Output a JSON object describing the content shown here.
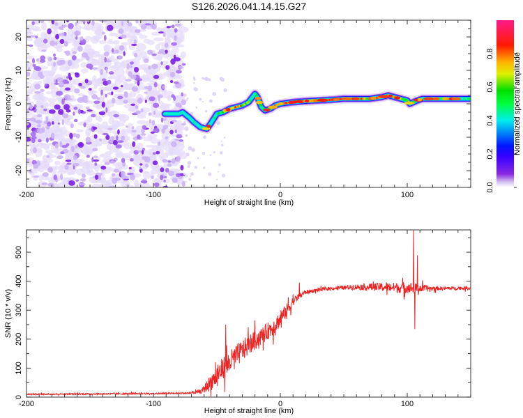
{
  "title": "S126.2026.041.14.15.G27",
  "chart_data": [
    {
      "type": "heatmap",
      "name": "spectrogram",
      "xlabel": "Height of straight line (km)",
      "ylabel": "Frequency (Hz)",
      "xlim": [
        -200,
        150
      ],
      "ylim": [
        -25,
        25
      ],
      "xticks": [
        -200,
        -100,
        0,
        100
      ],
      "yticks": [
        -20,
        -10,
        0,
        10,
        20
      ],
      "colorbar": {
        "label": "Normalized spectral amplitude",
        "range": [
          0.0,
          1.0
        ],
        "ticks": [
          "0.0",
          "0.2",
          "0.4",
          "0.6",
          "0.8"
        ],
        "colormap": "rainbow (white-violet-blue-cyan-green-yellow-red-magenta)"
      },
      "noise_region_x": [
        -200,
        -76
      ],
      "ridge": {
        "description": "Doppler ridge (center frequency vs height)",
        "x": [
          -91,
          -85,
          -80,
          -77,
          -72,
          -68,
          -63,
          -58,
          -55,
          -50,
          -45,
          -40,
          -35,
          -30,
          -25,
          -20,
          -18,
          -15,
          -12,
          -8,
          -4,
          0,
          10,
          20,
          30,
          40,
          50,
          60,
          70,
          80,
          85,
          90,
          95,
          100,
          102,
          105,
          108,
          112,
          120,
          130,
          140,
          150
        ],
        "y": [
          -3,
          -3,
          -3,
          -2.5,
          -4,
          -5.5,
          -7,
          -7.5,
          -6,
          -3,
          -2.5,
          -1.5,
          -1,
          -0.5,
          0.5,
          3,
          2,
          -1,
          -2,
          -1.5,
          -0.5,
          0,
          0.5,
          0.8,
          1,
          1.2,
          1.5,
          1.5,
          1.5,
          2,
          2.5,
          2,
          1.5,
          1,
          0,
          0.5,
          1,
          1.5,
          1.5,
          1.5,
          1.5,
          1.5
        ],
        "amplitude": [
          0.3,
          0.35,
          0.35,
          0.3,
          0.4,
          0.45,
          0.45,
          0.4,
          0.35,
          0.5,
          0.6,
          0.75,
          0.85,
          0.8,
          0.7,
          0.4,
          0.5,
          0.55,
          0.65,
          0.7,
          0.8,
          0.9,
          0.85,
          0.9,
          0.75,
          0.8,
          0.9,
          0.85,
          0.7,
          0.85,
          0.8,
          0.75,
          0.7,
          0.6,
          0.7,
          0.65,
          0.55,
          0.5,
          0.5,
          0.45,
          0.45,
          0.5
        ]
      }
    },
    {
      "type": "line",
      "name": "snr",
      "xlabel": "Height of straight line (km)",
      "ylabel": "SNR (10 * v/v)",
      "xlim": [
        -200,
        150
      ],
      "ylim": [
        0,
        577
      ],
      "xticks": [
        -200,
        -100,
        0,
        100
      ],
      "yticks": [
        0,
        100,
        200,
        300,
        400,
        500
      ],
      "color": "#ee2222",
      "series": [
        {
          "name": "SNR",
          "trend_x": [
            -200,
            -150,
            -100,
            -70,
            -62,
            -55,
            -45,
            -35,
            -25,
            -15,
            -5,
            0,
            5,
            10,
            15,
            20,
            30,
            40,
            50,
            60,
            70,
            80,
            90,
            100,
            110,
            120,
            130,
            140,
            150
          ],
          "trend_y": [
            10,
            11,
            12,
            14,
            20,
            50,
            100,
            140,
            180,
            210,
            245,
            270,
            300,
            330,
            350,
            362,
            370,
            375,
            378,
            380,
            380,
            380,
            378,
            378,
            375,
            375,
            375,
            376,
            376
          ],
          "noise_amplitude": [
            5,
            5,
            5,
            6,
            15,
            60,
            80,
            80,
            70,
            60,
            60,
            55,
            45,
            30,
            20,
            15,
            12,
            12,
            14,
            20,
            25,
            30,
            35,
            40,
            30,
            15,
            12,
            12,
            12
          ],
          "spikes": [
            {
              "x": -43,
              "y": 250
            },
            {
              "x": -20,
              "y": 265
            },
            {
              "x": 15,
              "y": 395
            },
            {
              "x": 105,
              "y": 577
            },
            {
              "x": 106,
              "y": 235
            },
            {
              "x": 108,
              "y": 490
            }
          ]
        }
      ]
    }
  ]
}
